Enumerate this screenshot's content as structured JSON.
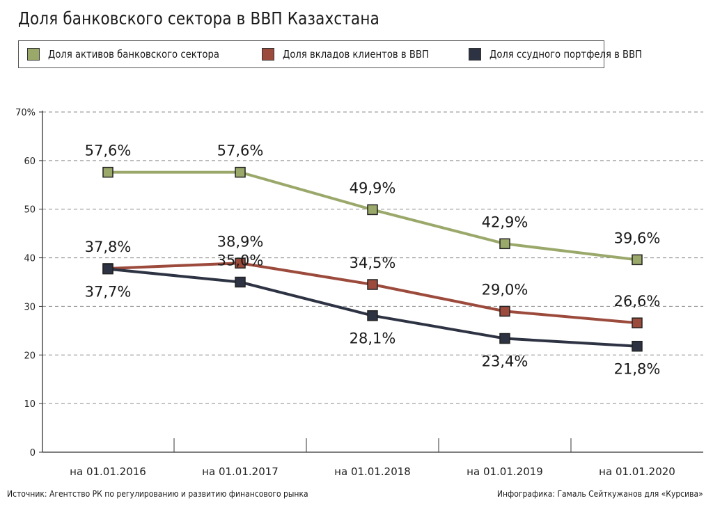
{
  "chart_data": {
    "type": "line",
    "title": "Доля банковского сектора в ВВП Казахстана",
    "categories": [
      "на 01.01.2016",
      "на 01.01.2017",
      "на 01.01.2018",
      "на 01.01.2019",
      "на 01.01.2020"
    ],
    "ylim": [
      0,
      70
    ],
    "yticks": [
      "0",
      "10",
      "20",
      "30",
      "40",
      "50",
      "60",
      "70%"
    ],
    "grid": true,
    "legend_position": "top-left",
    "series": [
      {
        "name": "Доля активов банковского сектора",
        "color": "#9aa86a",
        "values": [
          57.6,
          57.6,
          49.9,
          42.9,
          39.6
        ],
        "labels": [
          "57,6%",
          "57,6%",
          "49,9%",
          "42,9%",
          "39,6%"
        ]
      },
      {
        "name": "Доля вкладов клиентов в ВВП",
        "color": "#9c4a3c",
        "values": [
          37.8,
          38.9,
          34.5,
          29.0,
          26.6
        ],
        "labels": [
          "37,8%",
          "38,9%",
          "34,5%",
          "29,0%",
          "26,6%"
        ]
      },
      {
        "name": "Доля ссудного портфеля в ВВП",
        "color": "#2e3344",
        "values": [
          37.7,
          35.0,
          28.1,
          23.4,
          21.8
        ],
        "labels": [
          "37,7%",
          "35,0%",
          "28,1%",
          "23,4%",
          "21,8%"
        ]
      }
    ]
  },
  "footer": {
    "source": "Источник: Агентство РК по регулированию и развитию финансового рынка",
    "credit": "Инфографика: Гамаль Сейткужанов для «Курсива»"
  }
}
